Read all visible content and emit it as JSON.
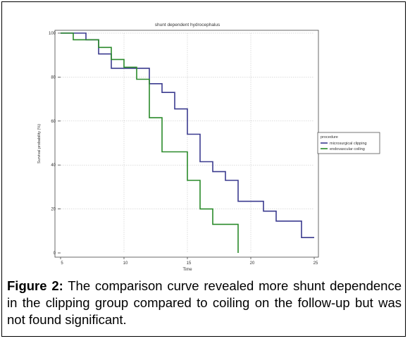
{
  "chart_data": {
    "type": "line",
    "step": true,
    "title": "shunt dependent hydrocephalus",
    "xlabel": "Time",
    "ylabel": "Survival probability (%)",
    "xlim": [
      5,
      25
    ],
    "ylim": [
      0,
      100
    ],
    "x_ticks": [
      5,
      10,
      15,
      20,
      25
    ],
    "y_ticks": [
      0,
      20,
      40,
      60,
      80,
      100
    ],
    "grid": true,
    "legend": {
      "title": "procedure",
      "placement": "right"
    },
    "series": [
      {
        "name": "microsurgical clipping",
        "color": "#3b3b8f",
        "points": [
          [
            5,
            100
          ],
          [
            7,
            100
          ],
          [
            7,
            97
          ],
          [
            8,
            97
          ],
          [
            8,
            90.5
          ],
          [
            9,
            90.5
          ],
          [
            9,
            84
          ],
          [
            12,
            84
          ],
          [
            12,
            77
          ],
          [
            13,
            77
          ],
          [
            13,
            73
          ],
          [
            14,
            73
          ],
          [
            14,
            65.5
          ],
          [
            15,
            65.5
          ],
          [
            15,
            54
          ],
          [
            16,
            54
          ],
          [
            16,
            41.5
          ],
          [
            17,
            41.5
          ],
          [
            17,
            37
          ],
          [
            18,
            37
          ],
          [
            18,
            33
          ],
          [
            19,
            33
          ],
          [
            19,
            23.5
          ],
          [
            21,
            23.5
          ],
          [
            21,
            19
          ],
          [
            22,
            19
          ],
          [
            22,
            14.5
          ],
          [
            24,
            14.5
          ],
          [
            24,
            7
          ],
          [
            25,
            7
          ]
        ]
      },
      {
        "name": "endovascular coiling",
        "color": "#2a8a2a",
        "points": [
          [
            5,
            100
          ],
          [
            6,
            100
          ],
          [
            6,
            97
          ],
          [
            8,
            97
          ],
          [
            8,
            93.5
          ],
          [
            9,
            93.5
          ],
          [
            9,
            88
          ],
          [
            10,
            88
          ],
          [
            10,
            84.5
          ],
          [
            11,
            84.5
          ],
          [
            11,
            79
          ],
          [
            12,
            79
          ],
          [
            12,
            61.5
          ],
          [
            13,
            61.5
          ],
          [
            13,
            46
          ],
          [
            15,
            46
          ],
          [
            15,
            33
          ],
          [
            16,
            33
          ],
          [
            16,
            20
          ],
          [
            17,
            20
          ],
          [
            17,
            13
          ],
          [
            19,
            13
          ],
          [
            19,
            0
          ]
        ]
      }
    ]
  },
  "caption": {
    "label": "Figure 2:",
    "text": " The comparison curve revealed more shunt dependence in the clipping group compared to coiling on the follow-up but was not found significant."
  }
}
